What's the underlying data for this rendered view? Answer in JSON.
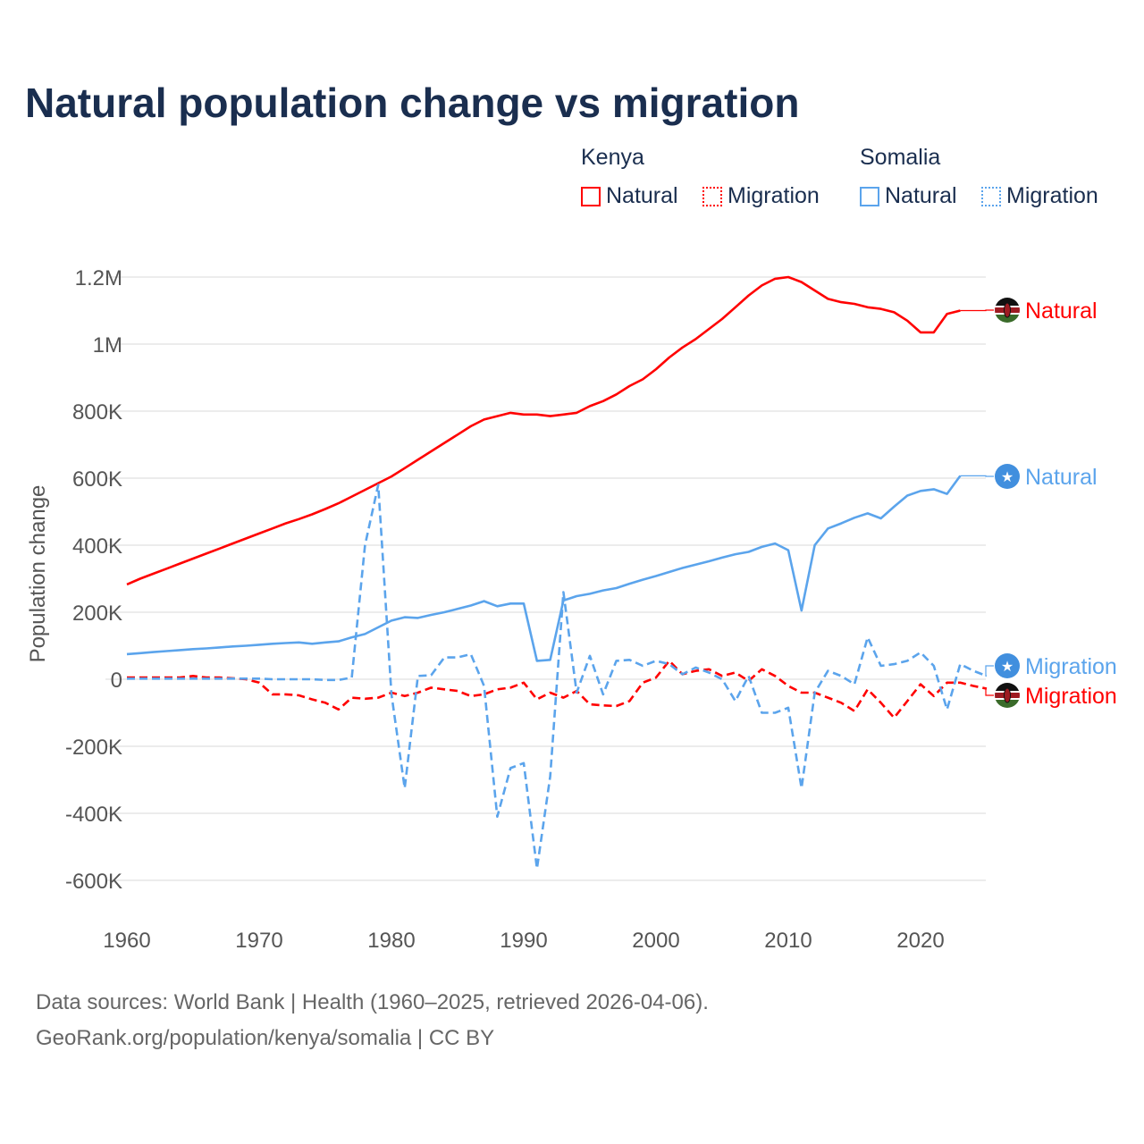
{
  "chart_data": {
    "type": "line",
    "title": "Natural population change vs migration",
    "ylabel": "Population change",
    "xlabel": "",
    "xlim": [
      1960,
      2025
    ],
    "ylim": [
      -700000,
      1250000
    ],
    "x_ticks": [
      "1960",
      "1970",
      "1980",
      "1990",
      "2000",
      "2010",
      "2020"
    ],
    "y_ticks": [
      {
        "value": 1200000,
        "label": "1.2M"
      },
      {
        "value": 1000000,
        "label": "1M"
      },
      {
        "value": 800000,
        "label": "800K"
      },
      {
        "value": 600000,
        "label": "600K"
      },
      {
        "value": 400000,
        "label": "400K"
      },
      {
        "value": 200000,
        "label": "200K"
      },
      {
        "value": 0,
        "label": "0"
      },
      {
        "value": -200000,
        "label": "-200K"
      },
      {
        "value": -400000,
        "label": "-400K"
      },
      {
        "value": -600000,
        "label": "-600K"
      }
    ],
    "grid": true,
    "legend_position": "top-right",
    "legend": {
      "groups": [
        {
          "name": "Kenya",
          "items": [
            "Natural",
            "Migration"
          ]
        },
        {
          "name": "Somalia",
          "items": [
            "Natural",
            "Migration"
          ]
        }
      ]
    },
    "series": [
      {
        "name": "Kenya Natural",
        "country": "Kenya",
        "kind": "Natural",
        "color": "#ff0000",
        "dash": false,
        "end_label": "Natural",
        "start_year": 1960,
        "values": [
          283000,
          300000,
          315000,
          330000,
          345000,
          360000,
          375000,
          390000,
          405000,
          420000,
          435000,
          450000,
          465000,
          478000,
          492000,
          508000,
          525000,
          545000,
          565000,
          585000,
          605000,
          630000,
          655000,
          680000,
          705000,
          730000,
          755000,
          775000,
          785000,
          795000,
          790000,
          790000,
          785000,
          790000,
          795000,
          815000,
          830000,
          850000,
          875000,
          895000,
          925000,
          960000,
          990000,
          1015000,
          1045000,
          1075000,
          1110000,
          1145000,
          1175000,
          1195000,
          1200000,
          1185000,
          1160000,
          1135000,
          1125000,
          1120000,
          1110000,
          1105000,
          1095000,
          1070000,
          1035000,
          1035000,
          1090000,
          1100000
        ]
      },
      {
        "name": "Kenya Migration",
        "country": "Kenya",
        "kind": "Migration",
        "color": "#ff0000",
        "dash": true,
        "end_label": "Migration",
        "start_year": 1960,
        "values": [
          5000,
          5000,
          5000,
          5000,
          5000,
          10000,
          5000,
          5000,
          3000,
          0,
          -10000,
          -45000,
          -45000,
          -48000,
          -60000,
          -70000,
          -90000,
          -55000,
          -58000,
          -55000,
          -40000,
          -50000,
          -40000,
          -25000,
          -30000,
          -35000,
          -50000,
          -45000,
          -30000,
          -25000,
          -10000,
          -60000,
          -40000,
          -55000,
          -35000,
          -75000,
          -78000,
          -80000,
          -65000,
          -10000,
          5000,
          55000,
          15000,
          25000,
          30000,
          10000,
          20000,
          -5000,
          30000,
          10000,
          -20000,
          -40000,
          -40000,
          -55000,
          -70000,
          -95000,
          -30000,
          -70000,
          -115000,
          -65000,
          -15000,
          -50000,
          -10000,
          -10000,
          -20000,
          -28000
        ]
      },
      {
        "name": "Somalia Natural",
        "country": "Somalia",
        "kind": "Natural",
        "color": "#5ba4ec",
        "dash": false,
        "end_label": "Natural",
        "start_year": 1960,
        "values": [
          75000,
          78000,
          81000,
          84000,
          87000,
          90000,
          92000,
          95000,
          98000,
          100000,
          103000,
          106000,
          108000,
          110000,
          106000,
          110000,
          113000,
          125000,
          135000,
          155000,
          175000,
          185000,
          183000,
          192000,
          200000,
          210000,
          220000,
          233000,
          218000,
          226000,
          226000,
          55000,
          58000,
          235000,
          248000,
          255000,
          265000,
          272000,
          285000,
          297000,
          308000,
          320000,
          332000,
          342000,
          352000,
          363000,
          373000,
          380000,
          395000,
          405000,
          385000,
          205000,
          400000,
          450000,
          465000,
          482000,
          495000,
          480000,
          515000,
          548000,
          562000,
          567000,
          553000,
          607000
        ]
      },
      {
        "name": "Somalia Migration",
        "country": "Somalia",
        "kind": "Migration",
        "color": "#5ba4ec",
        "dash": true,
        "end_label": "Migration",
        "start_year": 1960,
        "values": [
          2000,
          2000,
          2000,
          2000,
          2000,
          2000,
          2000,
          2000,
          2000,
          2000,
          2000,
          0,
          0,
          0,
          0,
          -2000,
          -2000,
          5000,
          400000,
          580000,
          -45000,
          -325000,
          10000,
          12000,
          65000,
          65000,
          75000,
          -20000,
          -410000,
          -265000,
          -250000,
          -565000,
          -290000,
          260000,
          -40000,
          70000,
          -45000,
          55000,
          58000,
          40000,
          55000,
          45000,
          15000,
          35000,
          20000,
          0,
          -65000,
          10000,
          -100000,
          -100000,
          -85000,
          -325000,
          -40000,
          25000,
          10000,
          -15000,
          125000,
          40000,
          45000,
          55000,
          80000,
          40000,
          -90000,
          45000,
          25000,
          10000
        ]
      }
    ]
  },
  "footer": {
    "source": "Data sources: World Bank | Health (1960–2025, retrieved 2026-04-06).",
    "credit": "GeoRank.org/population/kenya/somalia | CC BY"
  },
  "colors": {
    "kenya": "#ff0000",
    "somalia": "#5ba4ec",
    "title": "#1a2e4f"
  }
}
